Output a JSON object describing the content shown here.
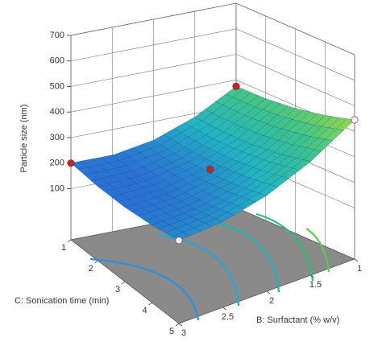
{
  "chart_data": {
    "type": "surface3d",
    "z_label": "Particle size (nm)",
    "x_label": "B: Surfactant (% w/v)",
    "y_label": "C: Sonication time (min)",
    "xlim": [
      1,
      3
    ],
    "xticks": [
      1,
      1.5,
      2,
      2.5,
      3
    ],
    "ylim": [
      1,
      5
    ],
    "yticks": [
      1,
      2,
      3,
      4,
      5
    ],
    "zlim": [
      -100,
      700
    ],
    "zticks": [
      100,
      200,
      300,
      400,
      500,
      600,
      700
    ],
    "colormap": [
      "#2a6fd6",
      "#22b4c4",
      "#3fc38a",
      "#9ad84a"
    ],
    "floor_color": "#8a8a8a",
    "surface": {
      "x": [
        1,
        1.5,
        2,
        2.5,
        3
      ],
      "y": [
        1,
        2,
        3,
        4,
        5
      ],
      "z": [
        [
          375,
          377,
          389,
          412,
          445
        ],
        [
          286,
          285,
          294,
          314,
          345
        ],
        [
          227,
          223,
          230,
          247,
          275
        ],
        [
          199,
          192,
          196,
          210,
          235
        ],
        [
          200,
          190,
          191,
          203,
          225
        ]
      ]
    },
    "points": {
      "x": [
        3,
        1,
        1,
        3,
        2
      ],
      "y": [
        1,
        1,
        5,
        5,
        3
      ],
      "z": [
        200,
        375,
        445,
        225,
        245
      ],
      "colors": [
        "#c0262d",
        "#c0262d",
        "#f2f2f2",
        "#f2f2f2",
        "#c0262d"
      ]
    }
  }
}
